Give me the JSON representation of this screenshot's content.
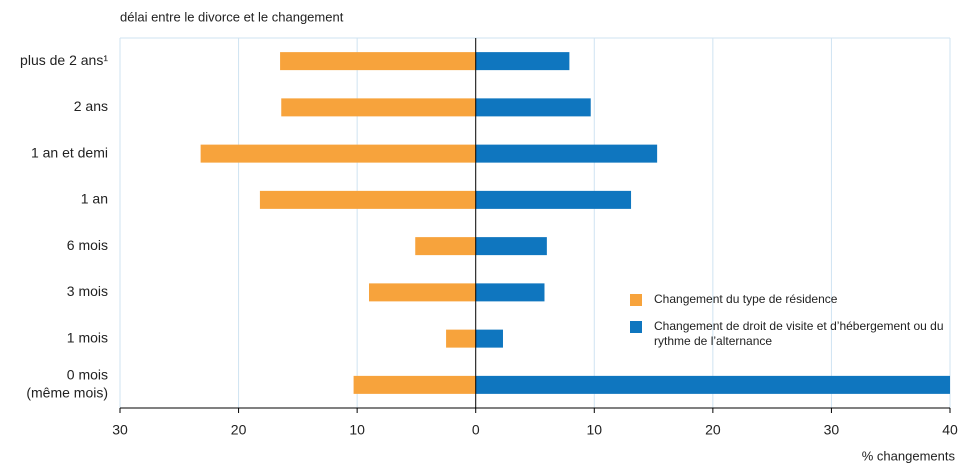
{
  "chart_data": {
    "type": "diverging-bar",
    "title": "délai entre le divorce et le changement",
    "xlabel": "% changements",
    "categories": [
      "plus de 2 ans¹",
      "2 ans",
      "1 an et demi",
      "1 an",
      "6 mois",
      "3 mois",
      "1 mois",
      [
        "0 mois",
        "(même mois)"
      ]
    ],
    "series": [
      {
        "name": "Changement du type de résidence",
        "color": "#f7a33c",
        "values": [
          -16.5,
          -16.4,
          -23.2,
          -18.2,
          -5.1,
          -9.0,
          -2.5,
          -10.3
        ]
      },
      {
        "name": "Changement de droit de visite et d’hébergement ou du rythme de l’alternance",
        "color": "#0f76bf",
        "values": [
          7.9,
          9.7,
          15.3,
          13.1,
          6.0,
          5.8,
          2.3,
          40
        ]
      }
    ],
    "xlim": [
      -30,
      40
    ],
    "xticks": [
      {
        "value": -30,
        "label": "30"
      },
      {
        "value": -20,
        "label": "20"
      },
      {
        "value": -10,
        "label": "10"
      },
      0,
      10,
      20,
      30,
      40
    ],
    "grid": true
  }
}
